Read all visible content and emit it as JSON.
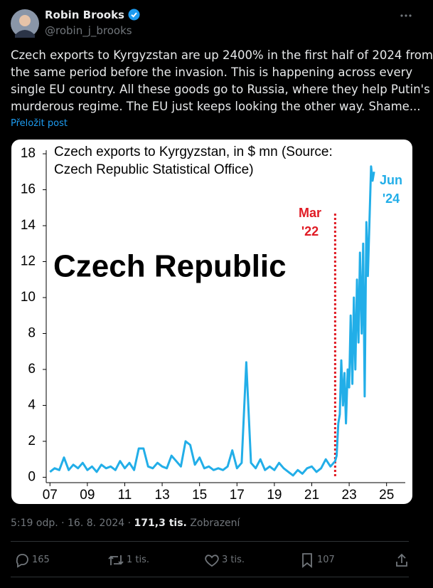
{
  "tweet": {
    "author": {
      "name": "Robin Brooks",
      "handle": "@robin_j_brooks"
    },
    "text_lines": [
      "Czech exports to Kyrgyzstan are up 2400% in the first half of 2024 from",
      "the same period before the invasion. This is happening across every",
      "single EU country. All these goods go to Russia, where they help Putin's",
      "murderous regime. The EU just keeps looking the other way. Shame..."
    ],
    "translate": "Přeložit post",
    "time": "5:19 odp. · 16. 8. 2024 ·",
    "views": "171,3 tis.",
    "views_label": "Zobrazení",
    "actions": {
      "replies": "165",
      "reposts": "1 tis.",
      "likes": "3 tis.",
      "bookmarks": "107"
    }
  },
  "chart_data": {
    "type": "line",
    "title": [
      "Czech exports to Kyrgyzstan, in $ mn (Source:",
      "Czech Republic Statistical Office)"
    ],
    "headline": "Czech Republic",
    "color": "#22aee8",
    "x": [
      2007.0,
      2007.25,
      2007.5,
      2007.75,
      2008.0,
      2008.25,
      2008.5,
      2008.75,
      2009.0,
      2009.25,
      2009.5,
      2009.75,
      2010.0,
      2010.25,
      2010.5,
      2010.75,
      2011.0,
      2011.25,
      2011.5,
      2011.75,
      2012.0,
      2012.25,
      2012.5,
      2012.75,
      2013.0,
      2013.25,
      2013.5,
      2013.75,
      2014.0,
      2014.25,
      2014.5,
      2014.75,
      2015.0,
      2015.25,
      2015.5,
      2015.75,
      2016.0,
      2016.25,
      2016.5,
      2016.75,
      2017.0,
      2017.25,
      2017.5,
      2017.75,
      2018.0,
      2018.25,
      2018.5,
      2018.75,
      2019.0,
      2019.25,
      2019.5,
      2019.75,
      2020.0,
      2020.25,
      2020.5,
      2020.75,
      2021.0,
      2021.25,
      2021.5,
      2021.75,
      2022.0,
      2022.25,
      2022.33,
      2022.42,
      2022.5,
      2022.58,
      2022.67,
      2022.75,
      2022.83,
      2022.92,
      2023.0,
      2023.08,
      2023.17,
      2023.25,
      2023.33,
      2023.42,
      2023.5,
      2023.58,
      2023.67,
      2023.75,
      2023.83,
      2023.92,
      2024.0,
      2024.17,
      2024.25,
      2024.33
    ],
    "values": [
      0.3,
      0.5,
      0.4,
      1.1,
      0.4,
      0.7,
      0.5,
      0.8,
      0.4,
      0.6,
      0.3,
      0.7,
      0.5,
      0.6,
      0.4,
      0.9,
      0.5,
      0.8,
      0.4,
      1.6,
      1.6,
      0.6,
      0.5,
      0.8,
      0.6,
      0.5,
      1.2,
      0.9,
      0.6,
      2.0,
      1.8,
      0.7,
      1.1,
      0.5,
      0.6,
      0.4,
      0.5,
      0.4,
      0.6,
      1.5,
      0.5,
      0.8,
      6.4,
      0.8,
      0.5,
      1.0,
      0.4,
      0.6,
      0.4,
      0.8,
      0.5,
      0.3,
      0.1,
      0.4,
      0.2,
      0.5,
      0.6,
      0.3,
      0.5,
      1.0,
      0.6,
      0.9,
      1.2,
      3.0,
      3.5,
      6.5,
      4.0,
      5.8,
      3.0,
      6.0,
      5.0,
      9.0,
      5.2,
      10.0,
      6.0,
      11.0,
      7.5,
      12.5,
      8.0,
      13.0,
      4.5,
      14.2,
      11.2,
      17.3,
      16.5,
      17.0
    ],
    "xlim": [
      2006.8,
      2026.0
    ],
    "xticks": [
      {
        "value": 2007,
        "label": "07"
      },
      {
        "value": 2009,
        "label": "09"
      },
      {
        "value": 2011,
        "label": "11"
      },
      {
        "value": 2013,
        "label": "13"
      },
      {
        "value": 2015,
        "label": "15"
      },
      {
        "value": 2017,
        "label": "17"
      },
      {
        "value": 2019,
        "label": "19"
      },
      {
        "value": 2021,
        "label": "21"
      },
      {
        "value": 2023,
        "label": "23"
      },
      {
        "value": 2025,
        "label": "25"
      }
    ],
    "ylim": [
      -0.3,
      18.2
    ],
    "yticks": [
      0,
      2,
      4,
      6,
      8,
      10,
      12,
      14,
      16,
      18
    ],
    "marker": {
      "x": 2022.25,
      "label": [
        "Mar",
        "'22"
      ],
      "color": "#e01b24"
    },
    "end_label": [
      "Jun",
      "'24"
    ]
  }
}
